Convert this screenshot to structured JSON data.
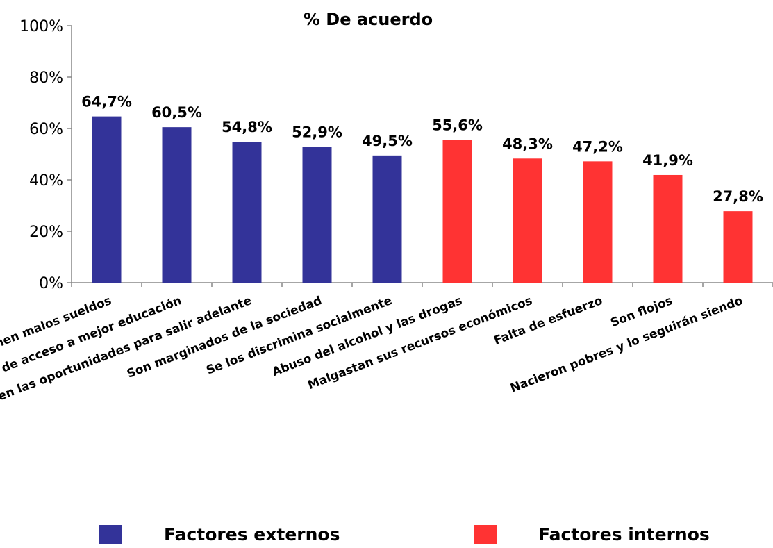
{
  "chart_data": {
    "type": "bar",
    "title": "% De acuerdo",
    "categories": [
      "Tienen malos sueldos",
      "Falta de acceso a mejor educación",
      "No tienen las oportunidades para salir adelante",
      "Son marginados de la sociedad",
      "Se los discrimina socialmente",
      "Abuso del alcohol y las drogas",
      "Malgastan sus recursos económicos",
      "Falta de esfuerzo",
      "Son flojos",
      "Nacieron pobres y lo seguirán siendo"
    ],
    "values": [
      64.7,
      60.5,
      54.8,
      52.9,
      49.5,
      55.6,
      48.3,
      47.2,
      41.9,
      27.8
    ],
    "value_labels": [
      "64,7%",
      "60,5%",
      "54,8%",
      "52,9%",
      "49,5%",
      "55,6%",
      "48,3%",
      "47,2%",
      "41,9%",
      "27,8%"
    ],
    "groups": [
      "Factores externos",
      "Factores externos",
      "Factores externos",
      "Factores externos",
      "Factores externos",
      "Factores internos",
      "Factores internos",
      "Factores internos",
      "Factores internos",
      "Factores internos"
    ],
    "yticks": [
      "0%",
      "20%",
      "40%",
      "60%",
      "80%",
      "100%"
    ],
    "ylim": [
      0,
      100
    ],
    "grid": false,
    "legend_position": "bottom",
    "legend": [
      {
        "name": "Factores externos",
        "color": "#333399"
      },
      {
        "name": "Factores internos",
        "color": "#ff3333"
      }
    ]
  }
}
